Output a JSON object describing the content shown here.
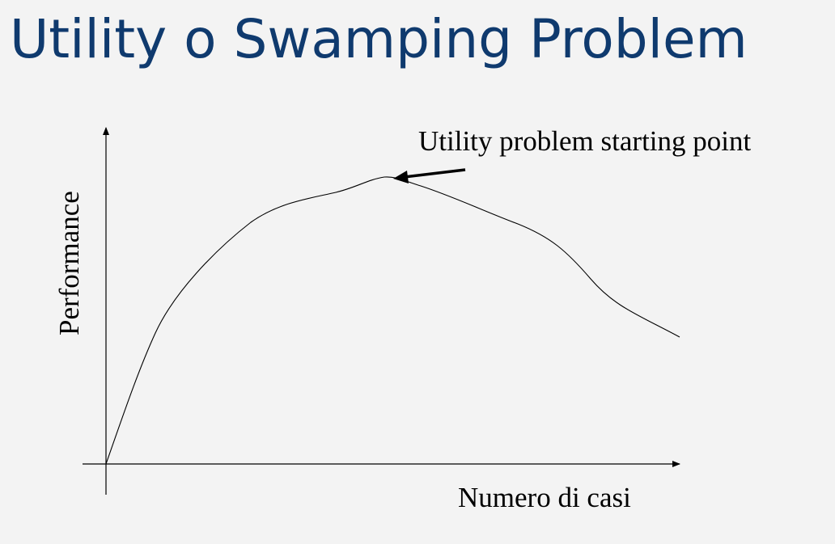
{
  "title": "Utility o Swamping Problem",
  "diagram": {
    "y_axis_label": "Performance",
    "x_axis_label": "Numero di casi",
    "annotation": "Utility problem starting point"
  },
  "colors": {
    "background": "#f3f3f3",
    "title": "#0f3a6e",
    "ink": "#000000"
  }
}
